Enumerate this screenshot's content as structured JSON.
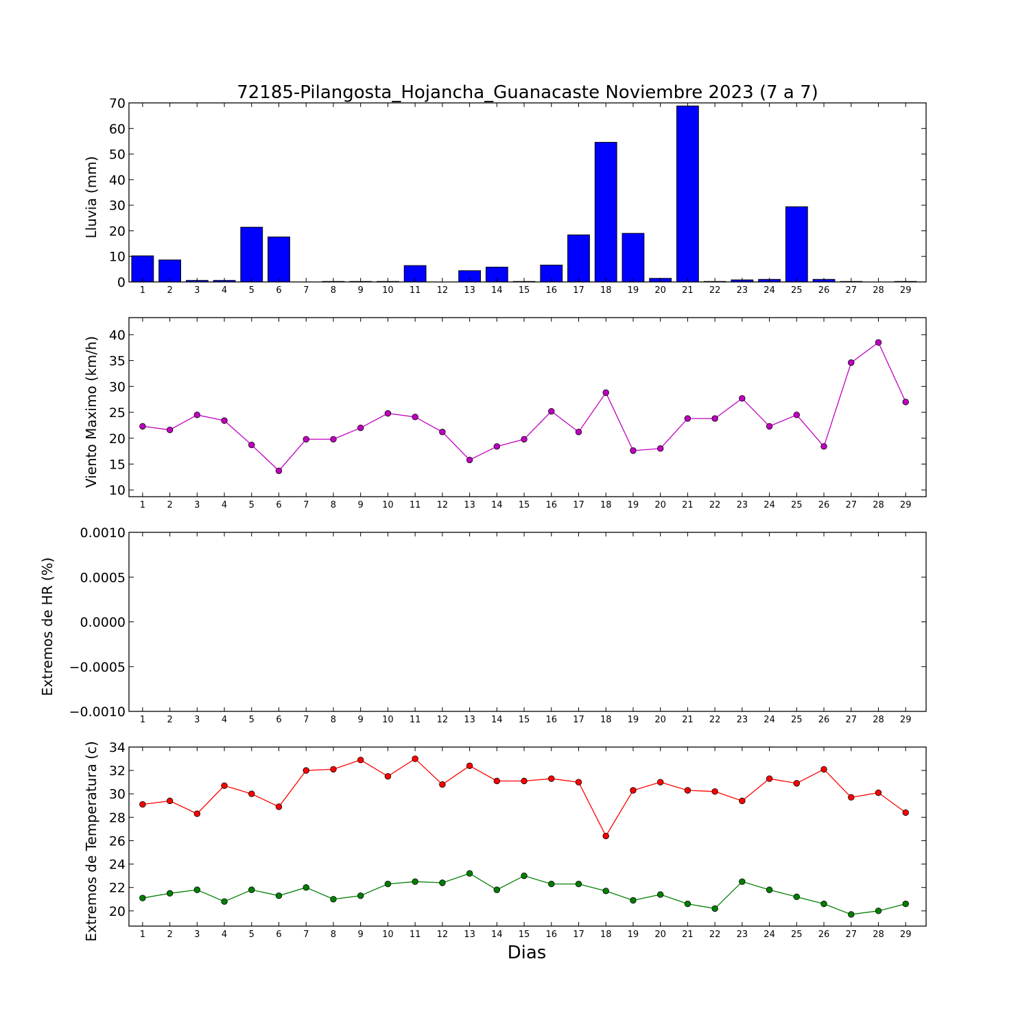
{
  "title": "72185-Pilangosta_Hojancha_Guanacaste Noviembre 2023  (7 a 7)",
  "xlabel": "Dias",
  "chart_data": [
    {
      "type": "bar",
      "ylabel": "Lluvia (mm)",
      "ylim": [
        0,
        70
      ],
      "yticks": [
        "0",
        "10",
        "20",
        "30",
        "40",
        "50",
        "60",
        "70"
      ],
      "categories": [
        "1",
        "2",
        "3",
        "4",
        "5",
        "6",
        "7",
        "8",
        "9",
        "10",
        "11",
        "12",
        "13",
        "14",
        "15",
        "16",
        "17",
        "18",
        "19",
        "20",
        "21",
        "22",
        "23",
        "24",
        "25",
        "26",
        "27",
        "28",
        "29"
      ],
      "colors": {
        "bar": "#0000ff"
      },
      "series": [
        {
          "values": [
            10.2,
            8.6,
            0.6,
            0.6,
            21.4,
            17.6,
            0,
            0.2,
            0.2,
            0.2,
            6.4,
            0,
            4.4,
            5.8,
            0.2,
            6.6,
            18.4,
            54.6,
            19.0,
            1.4,
            68.8,
            0.2,
            0.8,
            1.0,
            29.4,
            1.0,
            0.2,
            0,
            0.2
          ]
        }
      ]
    },
    {
      "type": "line",
      "ylabel": "Viento Maximo (km/h)",
      "ylim": [
        8.7,
        43.3
      ],
      "yticks": [
        "10",
        "15",
        "20",
        "25",
        "30",
        "35",
        "40"
      ],
      "categories": [
        "1",
        "2",
        "3",
        "4",
        "5",
        "6",
        "7",
        "8",
        "9",
        "10",
        "11",
        "12",
        "13",
        "14",
        "15",
        "16",
        "17",
        "18",
        "19",
        "20",
        "21",
        "22",
        "23",
        "24",
        "25",
        "26",
        "27",
        "28",
        "29"
      ],
      "colors": {
        "line": "#bf00bf"
      },
      "series": [
        {
          "values": [
            22.3,
            21.6,
            24.5,
            23.4,
            18.7,
            13.7,
            19.8,
            19.8,
            22.0,
            24.8,
            24.1,
            21.2,
            15.8,
            18.4,
            19.8,
            25.2,
            21.2,
            28.8,
            17.6,
            18.0,
            23.8,
            23.8,
            27.7,
            22.3,
            24.5,
            18.4,
            34.6,
            38.5,
            27.0
          ]
        }
      ]
    },
    {
      "type": "line",
      "ylabel": "Extremos de HR (%)",
      "ylim": [
        -0.001,
        0.001
      ],
      "yticks": [
        "0.0010",
        "0.0005",
        "0.0000",
        "−0.0005",
        "−0.0010"
      ],
      "categories": [
        "1",
        "2",
        "3",
        "4",
        "5",
        "6",
        "7",
        "8",
        "9",
        "10",
        "11",
        "12",
        "13",
        "14",
        "15",
        "16",
        "17",
        "18",
        "19",
        "20",
        "21",
        "22",
        "23",
        "24",
        "25",
        "26",
        "27",
        "28",
        "29"
      ],
      "series": []
    },
    {
      "type": "line",
      "ylabel": "Extremos de Temperatura (c)",
      "ylim": [
        18.7,
        34
      ],
      "yticks": [
        "20",
        "22",
        "24",
        "26",
        "28",
        "30",
        "32",
        "34"
      ],
      "categories": [
        "1",
        "2",
        "3",
        "4",
        "5",
        "6",
        "7",
        "8",
        "9",
        "10",
        "11",
        "12",
        "13",
        "14",
        "15",
        "16",
        "17",
        "18",
        "19",
        "20",
        "21",
        "22",
        "23",
        "24",
        "25",
        "26",
        "27",
        "28",
        "29"
      ],
      "colors": {
        "max": "#ff0000",
        "min": "#007f00"
      },
      "series": [
        {
          "values": [
            29.1,
            29.4,
            28.3,
            30.7,
            30.0,
            28.9,
            32.0,
            32.1,
            32.9,
            31.5,
            33.0,
            30.8,
            32.4,
            31.1,
            31.1,
            31.3,
            31.0,
            26.4,
            30.3,
            31.0,
            30.3,
            30.2,
            29.4,
            31.3,
            30.9,
            32.1,
            29.7,
            30.1,
            28.4
          ]
        },
        {
          "values": [
            21.1,
            21.5,
            21.8,
            20.8,
            21.8,
            21.3,
            22.0,
            21.0,
            21.3,
            22.3,
            22.5,
            22.4,
            23.2,
            21.8,
            23.0,
            22.3,
            22.3,
            21.7,
            20.9,
            21.4,
            20.6,
            20.2,
            22.5,
            21.8,
            21.2,
            20.6,
            19.7,
            20.0,
            20.6
          ]
        }
      ]
    }
  ]
}
